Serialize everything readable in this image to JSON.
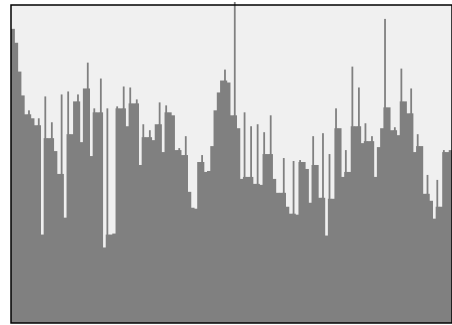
{
  "chart_data": {
    "type": "bar",
    "title": "",
    "xlabel": "",
    "ylabel": "",
    "ylim": [
      0,
      320
    ],
    "grid": false,
    "legend": "none",
    "colors": {
      "plot_background": "#f0f0f0",
      "bar": "#808080",
      "frame": "#000000"
    },
    "values": [
      296,
      282,
      253,
      229,
      210,
      214,
      206,
      199,
      206,
      89,
      228,
      186,
      202,
      173,
      150,
      230,
      106,
      233,
      190,
      223,
      230,
      182,
      236,
      262,
      168,
      216,
      212,
      246,
      76,
      216,
      89,
      90,
      218,
      216,
      238,
      198,
      237,
      221,
      225,
      159,
      200,
      187,
      194,
      184,
      200,
      222,
      172,
      219,
      212,
      209,
      174,
      176,
      169,
      188,
      132,
      116,
      115,
      162,
      169,
      152,
      153,
      178,
      214,
      232,
      244,
      255,
      242,
      209,
      323,
      196,
      145,
      212,
      147,
      198,
      140,
      200,
      139,
      192,
      170,
      209,
      145,
      131,
      131,
      166,
      117,
      110,
      163,
      109,
      164,
      162,
      155,
      121,
      188,
      159,
      126,
      191,
      88,
      170,
      125,
      216,
      196,
      147,
      174,
      152,
      258,
      198,
      237,
      181,
      201,
      183,
      188,
      147,
      177,
      196,
      306,
      217,
      194,
      197,
      189,
      256,
      223,
      211,
      236,
      172,
      190,
      178,
      130,
      149,
      123,
      105,
      144,
      117,
      174,
      172,
      174
    ]
  }
}
